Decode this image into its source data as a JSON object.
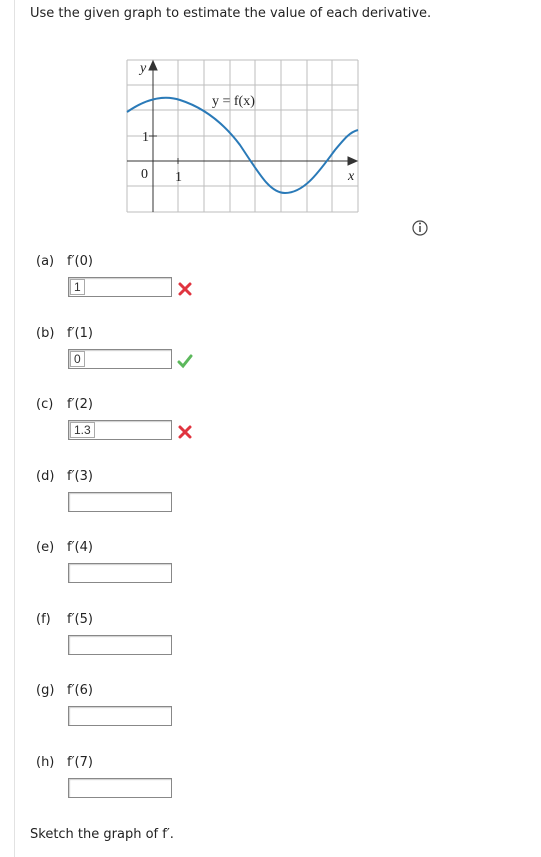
{
  "instruction": "Use the given graph to estimate the value of each derivative.",
  "graph": {
    "y_label": "y",
    "x_label": "x",
    "curve_label": "y = f(x)",
    "origin_label": "0",
    "x_tick_label": "1",
    "y_tick_label": "1"
  },
  "parts": [
    {
      "label": "(a)",
      "expression": "f′(0)",
      "answer": "1",
      "status": "incorrect"
    },
    {
      "label": "(b)",
      "expression": "f′(1)",
      "answer": "0",
      "status": "correct"
    },
    {
      "label": "(c)",
      "expression": "f′(2)",
      "answer": "1.3",
      "status": "incorrect"
    },
    {
      "label": "(d)",
      "expression": "f′(3)"
    },
    {
      "label": "(e)",
      "expression": "f′(4)"
    },
    {
      "label": "(f)",
      "expression": "f′(5)"
    },
    {
      "label": "(g)",
      "expression": "f′(6)"
    },
    {
      "label": "(h)",
      "expression": "f′(7)"
    }
  ],
  "footer": "Sketch the graph of f′."
}
